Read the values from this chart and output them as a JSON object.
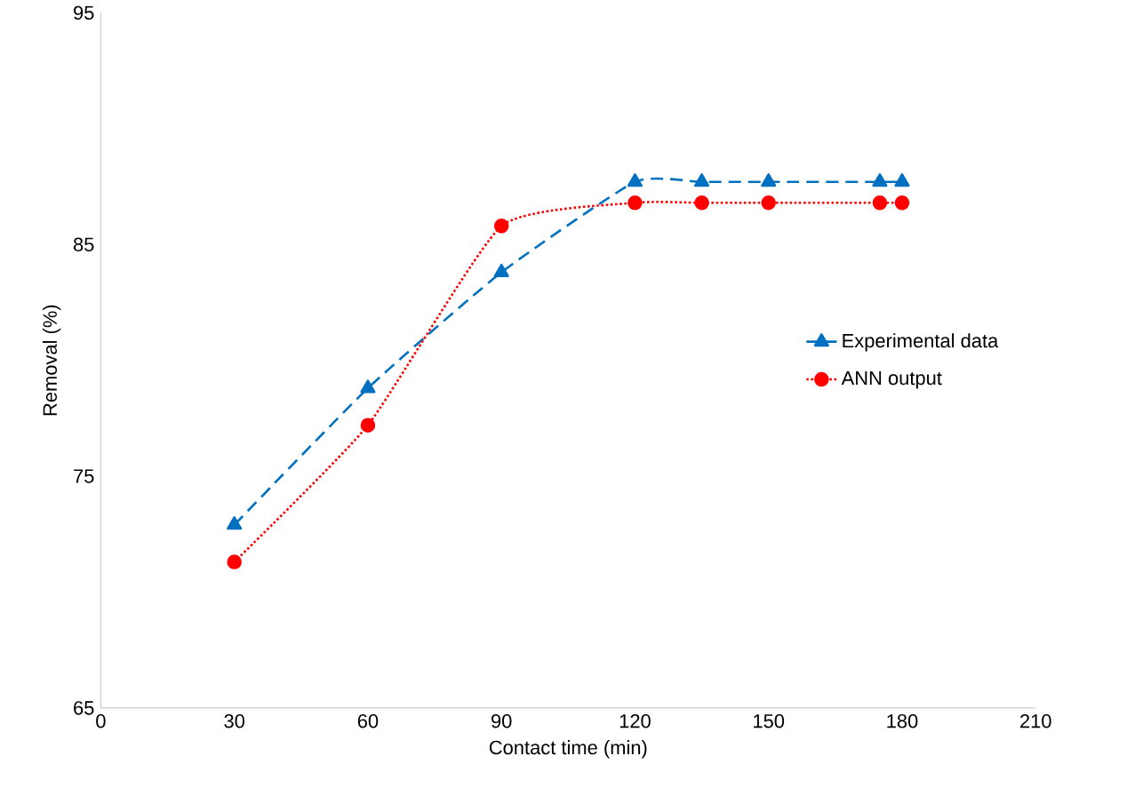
{
  "chart_data": {
    "type": "line",
    "xlabel": "Contact time (min)",
    "ylabel": "Removal (%)",
    "xlim": [
      0,
      210
    ],
    "xticks": [
      0,
      30,
      60,
      90,
      120,
      150,
      180,
      210
    ],
    "ylim": [
      65,
      95
    ],
    "yticks": [
      65,
      75,
      85,
      95
    ],
    "grid": false,
    "legend": "right",
    "series": [
      {
        "name": "Experimental data",
        "color": "#0070c0",
        "marker": "triangle",
        "line_style": "dashed",
        "x": [
          30,
          60,
          90,
          120,
          135,
          150,
          175,
          180
        ],
        "values": [
          72.9,
          78.8,
          83.8,
          87.7,
          87.7,
          87.7,
          87.7,
          87.7
        ]
      },
      {
        "name": "ANN output",
        "color": "#ff0000",
        "marker": "circle",
        "line_style": "dotted",
        "x": [
          30,
          60,
          90,
          120,
          135,
          150,
          175,
          180
        ],
        "values": [
          71.3,
          77.2,
          85.8,
          86.8,
          86.8,
          86.8,
          86.8,
          86.8
        ]
      }
    ]
  }
}
